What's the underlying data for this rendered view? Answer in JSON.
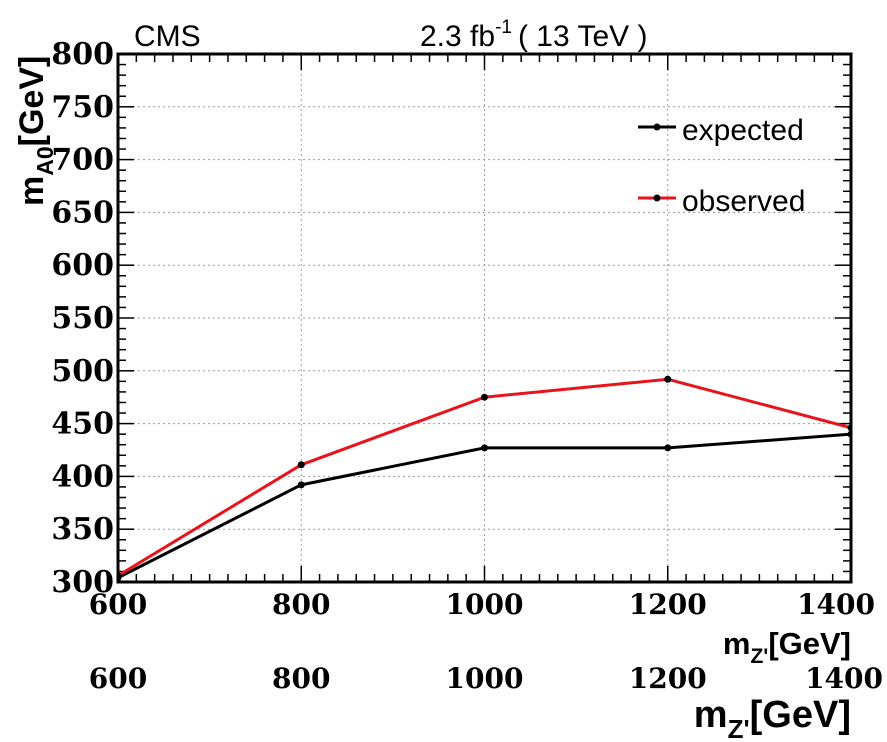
{
  "header": {
    "experiment": "CMS",
    "lumi_value": "2.3 fb",
    "lumi_exponent": "-1",
    "energy": "( 13 TeV )"
  },
  "chart_data": {
    "type": "line",
    "xlabel": {
      "main": "m",
      "sub": "Z'",
      "unit": "[GeV]"
    },
    "ylabel": {
      "main": "m",
      "sub": "A0",
      "unit": "[GeV]"
    },
    "xlim": [
      600,
      1400
    ],
    "ylim": [
      300,
      800
    ],
    "x_ticks": [
      600,
      800,
      1000,
      1200,
      1400
    ],
    "y_ticks": [
      300,
      350,
      400,
      450,
      500,
      550,
      600,
      650,
      700,
      750,
      800
    ],
    "x_tick_labels": [
      "600",
      "800",
      "1000",
      "1200",
      "1400"
    ],
    "y_tick_labels": [
      "300",
      "350",
      "400",
      "450",
      "500",
      "550",
      "600",
      "650",
      "700",
      "750",
      "800"
    ],
    "grid": true,
    "legend_position": "top-right",
    "series": [
      {
        "name": "expected",
        "color": "#000000",
        "x": [
          600,
          800,
          1000,
          1200,
          1400,
          1410
        ],
        "y": [
          304,
          392,
          427,
          427,
          440,
          436
        ]
      },
      {
        "name": "observed",
        "color": "#e8141b",
        "x": [
          600,
          800,
          1000,
          1200,
          1400,
          1410
        ],
        "y": [
          306,
          411,
          475,
          492,
          446,
          443
        ]
      }
    ],
    "ghost_axis": {
      "tick_labels": [
        "600",
        "800",
        "1000",
        "1200",
        "1400"
      ],
      "xlabel": {
        "main": "m",
        "sub": "Z'",
        "unit": "[GeV]"
      }
    }
  }
}
